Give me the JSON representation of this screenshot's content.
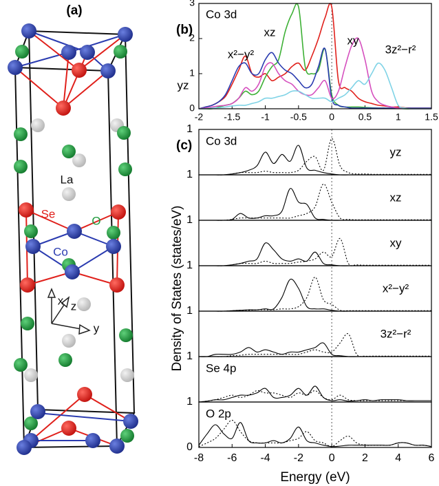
{
  "panel_a": {
    "label": "(a)",
    "atoms": {
      "la": "La",
      "se": "Se",
      "o": "O",
      "co": "Co"
    },
    "axes": {
      "x": "x",
      "z": "z",
      "y": "y"
    }
  },
  "chart_data": [
    {
      "type": "line",
      "panel_label": "(b)",
      "label": "Co 3d",
      "x": [
        -2,
        -1.9,
        -1.8,
        -1.7,
        -1.6,
        -1.5,
        -1.4,
        -1.3,
        -1.2,
        -1.1,
        -1,
        -0.9,
        -0.8,
        -0.7,
        -0.6,
        -0.5,
        -0.4,
        -0.3,
        -0.2,
        -0.1,
        0,
        0.1,
        0.2,
        0.3,
        0.4,
        0.5,
        0.6,
        0.7,
        0.8,
        0.9,
        1,
        1.1,
        1.2,
        1.3,
        1.4,
        1.5
      ],
      "xlim": [
        -2,
        1.5
      ],
      "xticks": [
        -2,
        -1.5,
        -1,
        -0.5,
        0,
        0.5,
        1,
        1.5
      ],
      "ylim": [
        0,
        3
      ],
      "yticks": [
        0,
        1,
        2,
        3
      ],
      "vline": 0,
      "series": [
        {
          "name": "yz",
          "color": "#e0201b",
          "values": [
            0,
            0.05,
            0.1,
            0.2,
            0.35,
            0.7,
            1.1,
            1.5,
            1.0,
            0.9,
            1.0,
            0.8,
            0.9,
            1.0,
            1.2,
            1.3,
            1.1,
            1.5,
            2.0,
            2.6,
            2.9,
            0.8,
            0.6,
            0.5,
            0.3,
            0.2,
            0.15,
            0.1,
            0.08,
            0.05,
            0.05,
            0.03,
            0.02,
            0.02,
            0.02,
            0.02
          ]
        },
        {
          "name": "xz",
          "color": "#3cb034",
          "values": [
            0,
            0,
            0,
            0.05,
            0.1,
            0.15,
            0.3,
            0.5,
            0.4,
            0.5,
            0.9,
            1.2,
            1.4,
            2.2,
            2.7,
            2.9,
            1.2,
            1.0,
            1.1,
            1.7,
            0.4,
            0.1,
            0.05,
            0.05,
            0.05,
            0.04,
            0.03,
            0.02,
            0.02,
            0.01,
            0.01,
            0,
            0,
            0,
            0,
            0
          ]
        },
        {
          "name": "x²−y²",
          "color": "#2a3bb0",
          "values": [
            0,
            0.05,
            0.1,
            0.2,
            0.4,
            0.8,
            1.2,
            1.3,
            1.0,
            1.0,
            1.4,
            1.6,
            1.3,
            1.1,
            1.0,
            0.8,
            0.6,
            0.7,
            1.2,
            1.7,
            0.3,
            0.1,
            0.05,
            0.02,
            0.02,
            0.02,
            0.02,
            0.02,
            0.02,
            0.02,
            0.02,
            0.02,
            0.02,
            0.02,
            0.02,
            0.02
          ]
        },
        {
          "name": "xy",
          "color": "#d54fbe",
          "values": [
            0,
            0.02,
            0.05,
            0.08,
            0.1,
            0.15,
            0.3,
            0.6,
            0.5,
            0.7,
            1.2,
            1.3,
            1.0,
            0.8,
            0.7,
            0.5,
            0.4,
            0.4,
            0.6,
            0.8,
            0.3,
            0.5,
            1.2,
            1.8,
            2.0,
            1.4,
            0.5,
            0.2,
            0.1,
            0.05,
            0.02,
            0.01,
            0,
            0,
            0,
            0
          ]
        },
        {
          "name": "3z²−r²",
          "color": "#7fd3e6",
          "values": [
            0,
            0,
            0.02,
            0.03,
            0.05,
            0.08,
            0.1,
            0.1,
            0.15,
            0.2,
            0.3,
            0.3,
            0.35,
            0.4,
            0.5,
            0.5,
            0.4,
            0.3,
            0.3,
            0.3,
            0.2,
            0.3,
            0.4,
            0.6,
            0.8,
            0.7,
            1.0,
            1.3,
            1.1,
            0.6,
            0.1,
            0.02,
            0,
            0,
            0,
            0
          ]
        }
      ]
    },
    {
      "type": "stacked-panels",
      "panel_label": "(c)",
      "xlabel": "Energy (eV)",
      "ylabel": "Density of States (states/eV)",
      "x": [
        -8,
        -7.5,
        -7,
        -6.5,
        -6,
        -5.5,
        -5,
        -4.5,
        -4,
        -3.5,
        -3,
        -2.5,
        -2,
        -1.5,
        -1,
        -0.5,
        0,
        0.5,
        1,
        1.5,
        2,
        2.5,
        3,
        3.5,
        4,
        4.5,
        5,
        5.5,
        6
      ],
      "xlim": [
        -8,
        6
      ],
      "xticks": [
        -8,
        -6,
        -4,
        -2,
        0,
        2,
        4,
        6
      ],
      "vline": 0,
      "panels": [
        {
          "left_label": "Co 3d",
          "right_label": "yz",
          "ylim": [
            0,
            1
          ],
          "yticks": [
            1
          ],
          "series": [
            {
              "color": "#000000",
              "dashed": false,
              "values": [
                0,
                0,
                0,
                0,
                0.02,
                0.05,
                0.1,
                0.2,
                0.5,
                0.25,
                0.45,
                0.3,
                0.65,
                0.15,
                0.1,
                0.05,
                0.02,
                0,
                0,
                0,
                0,
                0,
                0,
                0,
                0,
                0,
                0,
                0,
                0
              ]
            },
            {
              "color": "#000000",
              "dashed": true,
              "values": [
                0,
                0,
                0,
                0,
                0.02,
                0.05,
                0.05,
                0.05,
                0.08,
                0.05,
                0.05,
                0.05,
                0.1,
                0.3,
                0.4,
                0.1,
                0.8,
                0.2,
                0.05,
                0.02,
                0.02,
                0.01,
                0.01,
                0.01,
                0.01,
                0.01,
                0.01,
                0.01,
                0.01
              ]
            }
          ]
        },
        {
          "right_label": "xz",
          "ylim": [
            0,
            1
          ],
          "yticks": [
            1
          ],
          "series": [
            {
              "color": "#000000",
              "dashed": false,
              "values": [
                0,
                0,
                0,
                0,
                0.02,
                0.15,
                0.05,
                0.05,
                0.1,
                0.1,
                0.2,
                0.7,
                0.4,
                0.35,
                0.05,
                0.02,
                0,
                0,
                0,
                0,
                0,
                0,
                0,
                0,
                0,
                0,
                0,
                0,
                0
              ]
            },
            {
              "color": "#000000",
              "dashed": true,
              "values": [
                0,
                0,
                0,
                0,
                0.02,
                0.05,
                0.05,
                0.05,
                0.05,
                0.05,
                0.05,
                0.05,
                0.1,
                0.15,
                0.3,
                0.8,
                0.4,
                0.05,
                0.02,
                0.01,
                0.01,
                0.01,
                0.01,
                0.01,
                0.01,
                0.01,
                0.01,
                0.01,
                0.01
              ]
            }
          ]
        },
        {
          "right_label": "xy",
          "ylim": [
            0,
            1
          ],
          "yticks": [
            1
          ],
          "series": [
            {
              "color": "#000000",
              "dashed": false,
              "values": [
                0,
                0,
                0,
                0,
                0.02,
                0.05,
                0.1,
                0.15,
                0.5,
                0.35,
                0.15,
                0.1,
                0.15,
                0.1,
                0.3,
                0.05,
                0.02,
                0,
                0,
                0,
                0,
                0,
                0,
                0,
                0,
                0,
                0,
                0,
                0
              ]
            },
            {
              "color": "#000000",
              "dashed": true,
              "values": [
                0,
                0,
                0,
                0,
                0.02,
                0.05,
                0.05,
                0.05,
                0.1,
                0.05,
                0.05,
                0.05,
                0.08,
                0.1,
                0.15,
                0.3,
                0.2,
                0.6,
                0.05,
                0.02,
                0.01,
                0.01,
                0.01,
                0.01,
                0.01,
                0.01,
                0.01,
                0.01,
                0.01
              ]
            }
          ]
        },
        {
          "right_label": "x²−y²",
          "ylim": [
            0,
            1
          ],
          "yticks": [
            1
          ],
          "series": [
            {
              "color": "#000000",
              "dashed": false,
              "values": [
                0,
                0,
                0,
                0,
                0.01,
                0.02,
                0.03,
                0.03,
                0.05,
                0.05,
                0.3,
                0.7,
                0.5,
                0.1,
                0.05,
                0.05,
                0.02,
                0,
                0,
                0,
                0,
                0,
                0,
                0,
                0,
                0,
                0,
                0,
                0
              ]
            },
            {
              "color": "#000000",
              "dashed": true,
              "values": [
                0,
                0,
                0,
                0,
                0.01,
                0.02,
                0.02,
                0.03,
                0.03,
                0.03,
                0.05,
                0.05,
                0.1,
                0.3,
                0.75,
                0.25,
                0.15,
                0.02,
                0.01,
                0.01,
                0.01,
                0.01,
                0.01,
                0.01,
                0.01,
                0.01,
                0.01,
                0.01,
                0.01
              ]
            }
          ]
        },
        {
          "right_label": "3z²−r²",
          "ylim": [
            0,
            1
          ],
          "yticks": [
            1
          ],
          "series": [
            {
              "color": "#000000",
              "dashed": false,
              "values": [
                0,
                0,
                0.05,
                0.05,
                0.05,
                0.1,
                0.2,
                0.1,
                0.15,
                0.1,
                0.05,
                0.1,
                0.1,
                0.15,
                0.2,
                0.3,
                0.05,
                0.02,
                0,
                0,
                0,
                0,
                0,
                0,
                0,
                0,
                0,
                0,
                0
              ]
            },
            {
              "color": "#000000",
              "dashed": true,
              "values": [
                0,
                0,
                0,
                0,
                0.02,
                0.03,
                0.05,
                0.05,
                0.05,
                0.05,
                0.05,
                0.05,
                0.05,
                0.1,
                0.15,
                0.1,
                0.1,
                0.3,
                0.5,
                0.05,
                0.01,
                0.01,
                0.01,
                0.01,
                0.01,
                0.01,
                0.01,
                0.01,
                0.01
              ]
            }
          ]
        },
        {
          "left_label": "Se 4p",
          "ylim": [
            0,
            1
          ],
          "yticks": [
            1
          ],
          "series": [
            {
              "color": "#000000",
              "dashed": false,
              "values": [
                0,
                0.02,
                0.05,
                0.05,
                0.1,
                0.15,
                0.15,
                0.2,
                0.3,
                0.1,
                0.1,
                0.15,
                0.3,
                0.15,
                0.35,
                0.1,
                0.03,
                0.05,
                0.02,
                0.03,
                0.05,
                0.03,
                0.05,
                0.05,
                0.05,
                0.03,
                0.03,
                0.03,
                0.03
              ]
            },
            {
              "color": "#000000",
              "dashed": true,
              "values": [
                0,
                0.02,
                0.05,
                0.1,
                0.15,
                0.1,
                0.15,
                0.25,
                0.2,
                0.2,
                0.15,
                0.1,
                0.2,
                0.15,
                0.25,
                0.1,
                0.05,
                0.15,
                0.05,
                0.03,
                0.03,
                0.03,
                0.03,
                0.03,
                0.03,
                0.03,
                0.03,
                0.03,
                0.03
              ]
            }
          ]
        },
        {
          "left_label": "O 2p",
          "ylim": [
            0,
            1
          ],
          "yticks": [
            0,
            1
          ],
          "series": [
            {
              "color": "#000000",
              "dashed": false,
              "values": [
                0.05,
                0.3,
                0.5,
                0.3,
                0.2,
                0.55,
                0.15,
                0.1,
                0.1,
                0.15,
                0.1,
                0.2,
                0.45,
                0.15,
                0.1,
                0.05,
                0.02,
                0.03,
                0.05,
                0.05,
                0.05,
                0.05,
                0.05,
                0.05,
                0.1,
                0.1,
                0.05,
                0.05,
                0.02
              ]
            },
            {
              "color": "#000000",
              "dashed": true,
              "values": [
                0.02,
                0.1,
                0.2,
                0.4,
                0.6,
                0.35,
                0.15,
                0.1,
                0.1,
                0.1,
                0.1,
                0.15,
                0.2,
                0.35,
                0.15,
                0.1,
                0.02,
                0.15,
                0.25,
                0.1,
                0.05,
                0.05,
                0.05,
                0.05,
                0.1,
                0.1,
                0.05,
                0.05,
                0.02
              ]
            }
          ]
        }
      ]
    }
  ]
}
